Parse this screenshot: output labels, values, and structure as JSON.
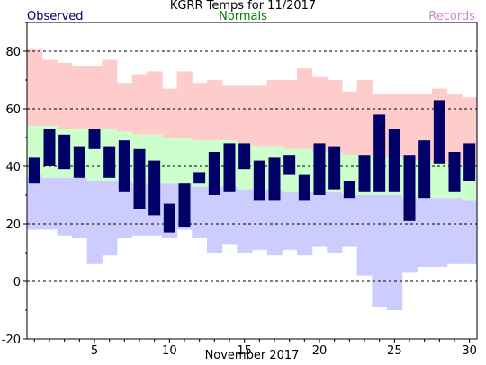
{
  "header": {
    "title": "KGRR Temps for 11/2017",
    "observed_label": "Observed",
    "normals_label": "Normals",
    "records_label": "Records"
  },
  "colors": {
    "observed": "#000066",
    "normals_label": "#008000",
    "records_label": "#cc88cc",
    "normals_fill": "#ccffcc",
    "record_high_fill": "#ffcccc",
    "record_low_fill": "#ccccff",
    "grid": "#000000"
  },
  "chart_data": {
    "type": "bar",
    "title": "KGRR Temps for 11/2017",
    "xlabel": "November 2017",
    "ylabel": "",
    "xlim": [
      1,
      30
    ],
    "ylim": [
      -20,
      90
    ],
    "yticks": [
      -20,
      0,
      20,
      40,
      60,
      80
    ],
    "xticks": [
      5,
      10,
      15,
      20,
      25,
      30
    ],
    "grid": "dashed horizontal at y ticks",
    "days": [
      1,
      2,
      3,
      4,
      5,
      6,
      7,
      8,
      9,
      10,
      11,
      12,
      13,
      14,
      15,
      16,
      17,
      18,
      19,
      20,
      21,
      22,
      23,
      24,
      25,
      26,
      27,
      28,
      29,
      30
    ],
    "series": [
      {
        "name": "Observed high",
        "values": [
          43,
          53,
          51,
          47,
          53,
          47,
          49,
          46,
          42,
          27,
          34,
          38,
          45,
          48,
          48,
          42,
          43,
          44,
          37,
          48,
          47,
          35,
          44,
          58,
          53,
          44,
          49,
          63,
          45,
          48
        ]
      },
      {
        "name": "Observed low",
        "values": [
          34,
          40,
          39,
          36,
          46,
          36,
          31,
          25,
          23,
          17,
          19,
          34,
          30,
          31,
          39,
          28,
          28,
          37,
          28,
          30,
          32,
          29,
          31,
          31,
          31,
          21,
          29,
          41,
          31,
          35
        ]
      },
      {
        "name": "Normal high",
        "values": [
          54,
          54,
          53,
          53,
          53,
          53,
          52,
          51,
          51,
          50,
          50,
          49,
          49,
          49,
          48,
          47,
          47,
          46,
          46,
          45,
          45,
          44,
          44,
          43,
          43,
          42,
          42,
          41,
          41,
          40
        ]
      },
      {
        "name": "Normal low",
        "values": [
          37,
          36,
          36,
          36,
          35,
          35,
          35,
          34,
          34,
          34,
          34,
          33,
          33,
          33,
          32,
          32,
          32,
          31,
          31,
          31,
          31,
          30,
          30,
          30,
          30,
          29,
          29,
          29,
          29,
          28
        ]
      },
      {
        "name": "Record high",
        "values": [
          81,
          77,
          76,
          75,
          75,
          77,
          69,
          72,
          73,
          67,
          73,
          69,
          70,
          68,
          68,
          68,
          70,
          70,
          74,
          71,
          70,
          66,
          70,
          65,
          65,
          65,
          65,
          67,
          65,
          64
        ]
      },
      {
        "name": "Record low",
        "values": [
          18,
          18,
          16,
          15,
          6,
          9,
          15,
          16,
          16,
          15,
          18,
          15,
          10,
          13,
          10,
          11,
          9,
          11,
          9,
          12,
          10,
          12,
          2,
          -9,
          -10,
          3,
          5,
          5,
          6,
          6
        ]
      }
    ]
  }
}
